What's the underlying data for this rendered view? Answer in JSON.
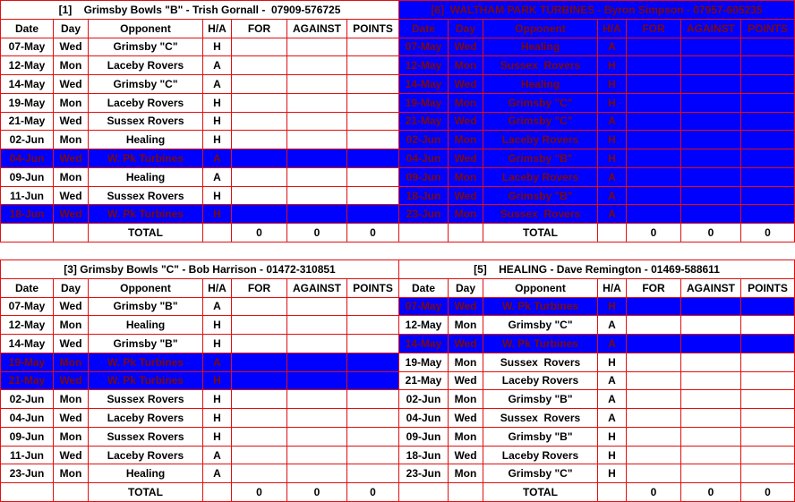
{
  "columns": [
    "Date",
    "Day",
    "Opponent",
    "H/A",
    "FOR",
    "AGAINST",
    "POINTS"
  ],
  "tables": [
    {
      "title": "[1]    Grimsby Bowls \"B\" - Trish Gornall -  07909-576725",
      "header_highlight": false,
      "highlighted_rows": [
        6,
        9
      ],
      "rows": [
        [
          "07-May",
          "Wed",
          "Grimsby \"C\"",
          "H"
        ],
        [
          "12-May",
          "Mon",
          "Laceby Rovers",
          "A"
        ],
        [
          "14-May",
          "Wed",
          "Grimsby \"C\"",
          "A"
        ],
        [
          "19-May",
          "Mon",
          "Laceby Rovers",
          "H"
        ],
        [
          "21-May",
          "Wed",
          "Sussex Rovers",
          "H"
        ],
        [
          "02-Jun",
          "Mon",
          "Healing",
          "H"
        ],
        [
          "04-Jun",
          "Wed",
          "W. Pk Turbines",
          "A"
        ],
        [
          "09-Jun",
          "Mon",
          "Healing",
          "A"
        ],
        [
          "11-Jun",
          "Wed",
          "Sussex Rovers",
          "H"
        ],
        [
          "18-Jun",
          "Wed",
          "W. Pk Turbines",
          "H"
        ]
      ],
      "total": {
        "label": "TOTAL",
        "for": 0,
        "against": 0,
        "points": 0
      }
    },
    {
      "title": "[6]  WALTHAM PARK TURBINES - Byron Simpson - 07957-605235",
      "header_highlight": true,
      "highlighted_rows": [
        0,
        1,
        2,
        3,
        4,
        5,
        6,
        7,
        8,
        9
      ],
      "rows": [
        [
          "07-May",
          "Wed",
          "Healing",
          "A"
        ],
        [
          "12-May",
          "Mon",
          "Sussex  Rovers",
          "H"
        ],
        [
          "14-May",
          "Wed",
          "Healing",
          "H"
        ],
        [
          "19-May",
          "Mon",
          "Grimsby \"C\"",
          "H"
        ],
        [
          "21-May",
          "Wed",
          "Grimsby \"C\"",
          "A"
        ],
        [
          "02-Jun",
          "Mon",
          "Laceby Rovers",
          "H"
        ],
        [
          "04-Jun",
          "Wed",
          "Grimsby \"B\"",
          "H"
        ],
        [
          "09-Jun",
          "Mon",
          "Laceby Rovers",
          "A"
        ],
        [
          "18-Jun",
          "Wed",
          "Grimsby \"B\"",
          "A"
        ],
        [
          "23-Jun",
          "Mon",
          "Sussex  Rovers",
          "A"
        ]
      ],
      "total": {
        "label": "TOTAL",
        "for": 0,
        "against": 0,
        "points": 0
      }
    },
    {
      "title": "[3] Grimsby Bowls \"C\" - Bob Harrison - 01472-310851",
      "header_highlight": false,
      "highlighted_rows": [
        3,
        4
      ],
      "rows": [
        [
          "07-May",
          "Wed",
          "Grimsby \"B\"",
          "A"
        ],
        [
          "12-May",
          "Mon",
          "Healing",
          "H"
        ],
        [
          "14-May",
          "Wed",
          "Grimsby \"B\"",
          "H"
        ],
        [
          "19-May",
          "Mon",
          "W. Pk Turbines",
          "A"
        ],
        [
          "21-May",
          "Wed",
          "W. Pk Turbines",
          "H"
        ],
        [
          "02-Jun",
          "Mon",
          "Sussex Rovers",
          "H"
        ],
        [
          "04-Jun",
          "Wed",
          "Laceby Rovers",
          "H"
        ],
        [
          "09-Jun",
          "Mon",
          "Sussex Rovers",
          "H"
        ],
        [
          "11-Jun",
          "Wed",
          "Laceby Rovers",
          "A"
        ],
        [
          "23-Jun",
          "Mon",
          "Healing",
          "A"
        ]
      ],
      "total": {
        "label": "TOTAL",
        "for": 0,
        "against": 0,
        "points": 0
      }
    },
    {
      "title": "[5]    HEALING - Dave Remington - 01469-588611",
      "header_highlight": false,
      "highlighted_rows": [
        0,
        2
      ],
      "rows": [
        [
          "07-May",
          "Wed",
          "W. Pk Turbines",
          "H"
        ],
        [
          "12-May",
          "Mon",
          "Grimsby \"C\"",
          "A"
        ],
        [
          "14-May",
          "Wed",
          "W. Pk Turbines",
          "A"
        ],
        [
          "19-May",
          "Mon",
          "Sussex  Rovers",
          "H"
        ],
        [
          "21-May",
          "Wed",
          "Laceby Rovers",
          "A"
        ],
        [
          "02-Jun",
          "Mon",
          "Grimsby \"B\"",
          "A"
        ],
        [
          "04-Jun",
          "Wed",
          "Sussex  Rovers",
          "A"
        ],
        [
          "09-Jun",
          "Mon",
          "Grimsby \"B\"",
          "H"
        ],
        [
          "18-Jun",
          "Wed",
          "Laceby Rovers",
          "H"
        ],
        [
          "23-Jun",
          "Mon",
          "Grimsby \"C\"",
          "H"
        ]
      ],
      "total": {
        "label": "TOTAL",
        "for": 0,
        "against": 0,
        "points": 0
      }
    }
  ]
}
